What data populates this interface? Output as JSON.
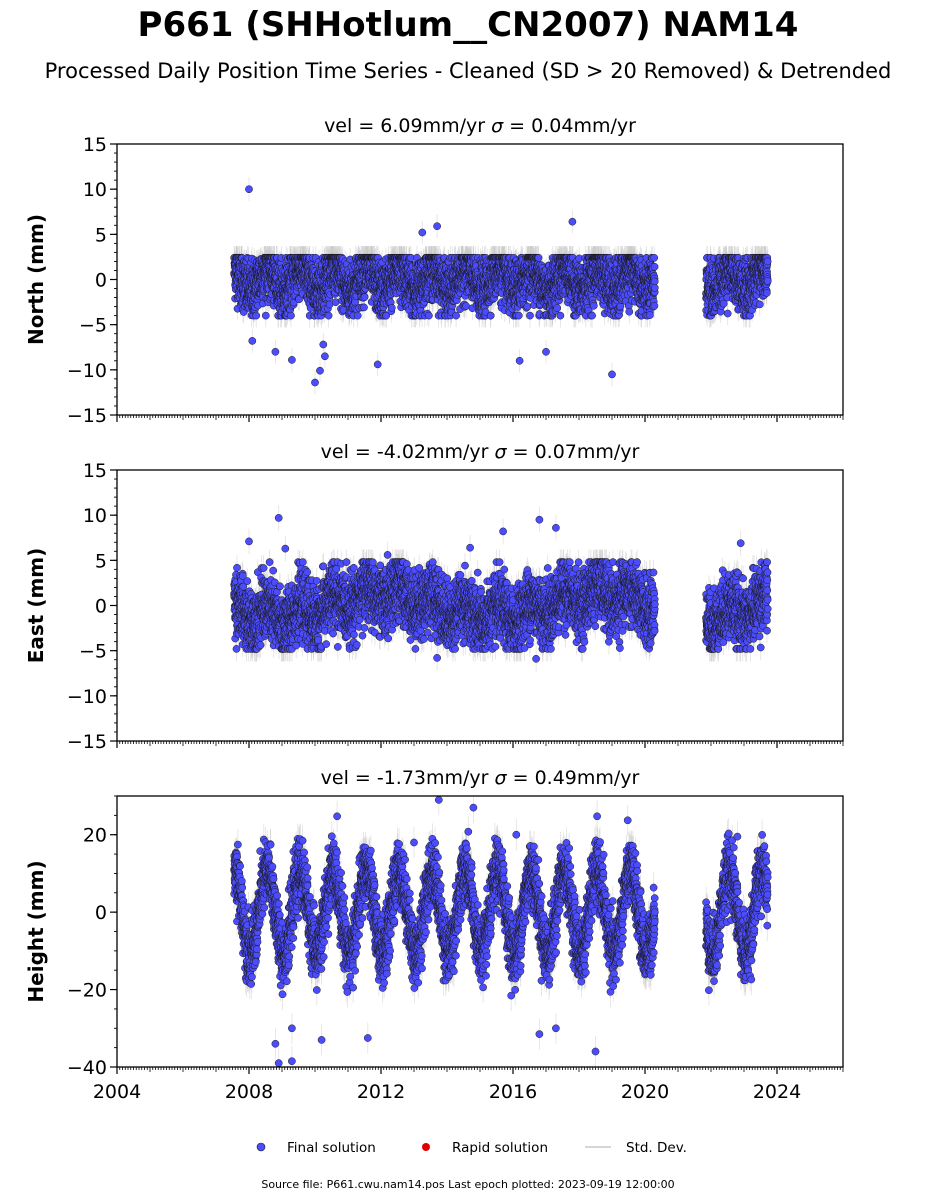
{
  "title": "P661 (SHHotlum__CN2007) NAM14",
  "subtitle": "Processed Daily Position Time Series - Cleaned (SD > 20 Removed) & Detrended",
  "footer": "Source file: P661.cwu.nam14.pos  Last epoch plotted: 2023-09-19 12:00:00",
  "legend": {
    "final": "Final solution",
    "rapid": "Rapid solution",
    "std": "Std. Dev."
  },
  "colors": {
    "final": "#4c4cff",
    "rapid": "#e00000",
    "std": "#c8c8c8",
    "marker_edge": "#1a1a1a"
  },
  "chart_data": [
    {
      "type": "scatter",
      "component": "north",
      "title_vel": "vel = 6.09mm/yr",
      "title_sigma_sym": "σ",
      "title_sigma_val": " = 0.04mm/yr",
      "ylabel": "North (mm)",
      "xlim": [
        2004,
        2026
      ],
      "ylim": [
        -15,
        15
      ],
      "yticks": [
        "15",
        "10",
        "5",
        "0",
        "−5",
        "−10",
        "−15"
      ],
      "amp": 1.2,
      "noise": 1.6,
      "sd": 1.3,
      "band_lo": -2.5,
      "band_hi": 1.5,
      "outliers": [
        [
          2008.0,
          10.0
        ],
        [
          2010.0,
          -11.4
        ],
        [
          2010.3,
          -8.5
        ],
        [
          2010.15,
          -10.1
        ],
        [
          2013.25,
          5.2
        ],
        [
          2013.7,
          5.9
        ],
        [
          2017.8,
          6.4
        ],
        [
          2008.8,
          -8.0
        ],
        [
          2009.3,
          -8.9
        ],
        [
          2011.9,
          -9.4
        ],
        [
          2016.2,
          -9.0
        ],
        [
          2017.0,
          -8.0
        ],
        [
          2019.0,
          -10.5
        ],
        [
          2008.1,
          -6.8
        ],
        [
          2010.25,
          -7.2
        ]
      ]
    },
    {
      "type": "scatter",
      "component": "east",
      "title_vel": "vel = -4.02mm/yr",
      "title_sigma_sym": "σ",
      "title_sigma_val": " = 0.07mm/yr",
      "ylabel": "East (mm)",
      "xlim": [
        2004,
        2026
      ],
      "ylim": [
        -15,
        15
      ],
      "yticks": [
        "15",
        "10",
        "5",
        "0",
        "−5",
        "−10",
        "−15"
      ],
      "amp": 1.0,
      "noise": 1.8,
      "sd": 1.4,
      "band_lo": -3.0,
      "band_hi": 3.0,
      "outliers": [
        [
          2008.9,
          9.7
        ],
        [
          2016.8,
          9.5
        ],
        [
          2017.3,
          8.6
        ],
        [
          2015.7,
          8.2
        ],
        [
          2008.0,
          7.1
        ],
        [
          2009.1,
          6.3
        ],
        [
          2013.7,
          -5.8
        ],
        [
          2016.7,
          -5.9
        ],
        [
          2022.9,
          6.9
        ],
        [
          2012.2,
          5.6
        ],
        [
          2014.7,
          6.4
        ]
      ]
    },
    {
      "type": "scatter",
      "component": "height",
      "title_vel": "vel = -1.73mm/yr",
      "title_sigma_sym": "σ",
      "title_sigma_val": " = 0.49mm/yr",
      "ylabel": "Height (mm)",
      "xlim": [
        2004,
        2026
      ],
      "ylim": [
        -40,
        30
      ],
      "yticks": [
        "20",
        "0",
        "−20",
        "−40"
      ],
      "amp": 10.5,
      "noise": 4.0,
      "sd": 4.0,
      "band_lo": -20,
      "band_hi": 16,
      "outliers": [
        [
          2013.75,
          29.0
        ],
        [
          2014.8,
          27.0
        ],
        [
          2008.9,
          -39.0
        ],
        [
          2009.3,
          -38.5
        ],
        [
          2010.2,
          -33.0
        ],
        [
          2018.5,
          -36.0
        ],
        [
          2008.8,
          -34.0
        ],
        [
          2016.8,
          -31.5
        ],
        [
          2011.6,
          -32.5
        ],
        [
          2016.1,
          20.0
        ],
        [
          2013.0,
          18.0
        ],
        [
          2022.8,
          19.5
        ],
        [
          2009.3,
          -30.0
        ],
        [
          2017.3,
          -30.0
        ]
      ]
    }
  ],
  "x_tick_labels": [
    "2004",
    "2008",
    "2012",
    "2016",
    "2020",
    "2024"
  ],
  "segments": [
    [
      2007.55,
      2020.3
    ],
    [
      2021.85,
      2023.72
    ]
  ]
}
